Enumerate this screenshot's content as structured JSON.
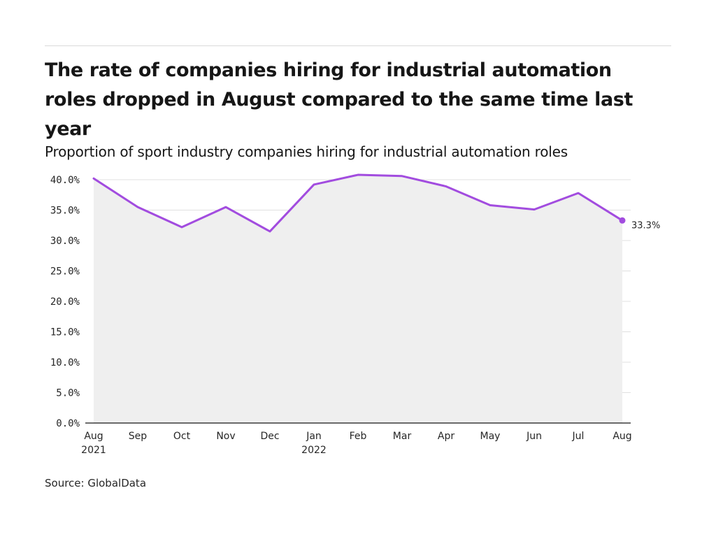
{
  "title": "The rate of companies hiring for industrial automation roles dropped in August compared to the same time last year",
  "subtitle": "Proportion of sport industry companies hiring for industrial automation roles",
  "source": "Source: GlobalData",
  "colors": {
    "line": "#a24cdf",
    "area": "#efefef",
    "grid": "#e0e0e0",
    "axis": "#161616"
  },
  "chart_data": {
    "type": "area",
    "title": "The rate of companies hiring for industrial automation roles dropped in August compared to the same time last year",
    "subtitle": "Proportion of sport industry companies hiring for industrial automation roles",
    "categories": [
      [
        "Aug",
        "2021"
      ],
      [
        "Sep"
      ],
      [
        "Oct"
      ],
      [
        "Nov"
      ],
      [
        "Dec"
      ],
      [
        "Jan",
        "2022"
      ],
      [
        "Feb"
      ],
      [
        "Mar"
      ],
      [
        "Apr"
      ],
      [
        "May"
      ],
      [
        "Jun"
      ],
      [
        "Jul"
      ],
      [
        "Aug"
      ]
    ],
    "values": [
      40.2,
      35.5,
      32.2,
      35.5,
      31.5,
      39.2,
      40.8,
      40.6,
      38.9,
      35.8,
      35.1,
      37.8,
      33.3
    ],
    "ylim": [
      0,
      40
    ],
    "yticks": [
      0,
      5,
      10,
      15,
      20,
      25,
      30,
      35,
      40
    ],
    "ytick_labels": [
      "0.0%",
      "5.0%",
      "10.0%",
      "15.0%",
      "20.0%",
      "25.0%",
      "30.0%",
      "35.0%",
      "40.0%"
    ],
    "end_label": "33.3%",
    "xlabel": "",
    "ylabel": "",
    "grid": true,
    "legend": "none"
  }
}
